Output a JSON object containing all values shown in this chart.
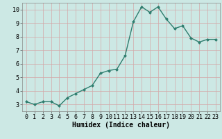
{
  "x": [
    0,
    1,
    2,
    3,
    4,
    5,
    6,
    7,
    8,
    9,
    10,
    11,
    12,
    13,
    14,
    15,
    16,
    17,
    18,
    19,
    20,
    21,
    22,
    23
  ],
  "y": [
    3.2,
    3.0,
    3.2,
    3.2,
    2.9,
    3.5,
    3.8,
    4.1,
    4.4,
    5.3,
    5.5,
    5.6,
    6.6,
    9.1,
    10.2,
    9.8,
    10.2,
    9.3,
    8.6,
    8.8,
    7.9,
    7.6,
    7.8,
    7.8
  ],
  "line_color": "#2e7d6e",
  "marker": "D",
  "marker_size": 2.0,
  "bg_color": "#cce8e4",
  "grid_color": "#c0d8d4",
  "xlabel": "Humidex (Indice chaleur)",
  "xlim": [
    -0.5,
    23.5
  ],
  "ylim": [
    2.5,
    10.5
  ],
  "yticks": [
    3,
    4,
    5,
    6,
    7,
    8,
    9,
    10
  ],
  "xticks": [
    0,
    1,
    2,
    3,
    4,
    5,
    6,
    7,
    8,
    9,
    10,
    11,
    12,
    13,
    14,
    15,
    16,
    17,
    18,
    19,
    20,
    21,
    22,
    23
  ],
  "xtick_labels": [
    "0",
    "1",
    "2",
    "3",
    "4",
    "5",
    "6",
    "7",
    "8",
    "9",
    "10",
    "11",
    "12",
    "13",
    "14",
    "15",
    "16",
    "17",
    "18",
    "19",
    "20",
    "21",
    "22",
    "23"
  ],
  "xlabel_fontsize": 7,
  "tick_fontsize": 6,
  "line_width": 1.0
}
